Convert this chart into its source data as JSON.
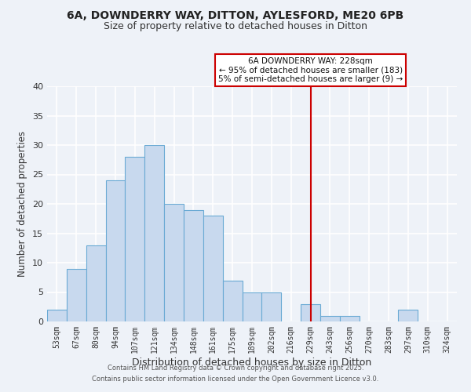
{
  "title1": "6A, DOWNDERRY WAY, DITTON, AYLESFORD, ME20 6PB",
  "title2": "Size of property relative to detached houses in Ditton",
  "xlabel": "Distribution of detached houses by size in Ditton",
  "ylabel": "Number of detached properties",
  "bin_labels": [
    "53sqm",
    "67sqm",
    "80sqm",
    "94sqm",
    "107sqm",
    "121sqm",
    "134sqm",
    "148sqm",
    "161sqm",
    "175sqm",
    "189sqm",
    "202sqm",
    "216sqm",
    "229sqm",
    "243sqm",
    "256sqm",
    "270sqm",
    "283sqm",
    "297sqm",
    "310sqm",
    "324sqm"
  ],
  "bar_heights": [
    2,
    9,
    13,
    24,
    28,
    30,
    20,
    19,
    18,
    7,
    5,
    5,
    0,
    3,
    1,
    1,
    0,
    0,
    2,
    0,
    0
  ],
  "bar_color": "#c8d9ee",
  "bar_edge_color": "#6aaad4",
  "vline_x": 13.0,
  "vline_color": "#cc0000",
  "annotation_title": "6A DOWNDERRY WAY: 228sqm",
  "annotation_line2": "← 95% of detached houses are smaller (183)",
  "annotation_line3": "5% of semi-detached houses are larger (9) →",
  "annotation_box_color": "#ffffff",
  "annotation_box_edge": "#cc0000",
  "ylim": [
    0,
    40
  ],
  "yticks": [
    0,
    5,
    10,
    15,
    20,
    25,
    30,
    35,
    40
  ],
  "bg_color": "#eef2f8",
  "grid_color": "#ffffff",
  "footer1": "Contains HM Land Registry data © Crown copyright and database right 2025.",
  "footer2": "Contains public sector information licensed under the Open Government Licence v3.0."
}
